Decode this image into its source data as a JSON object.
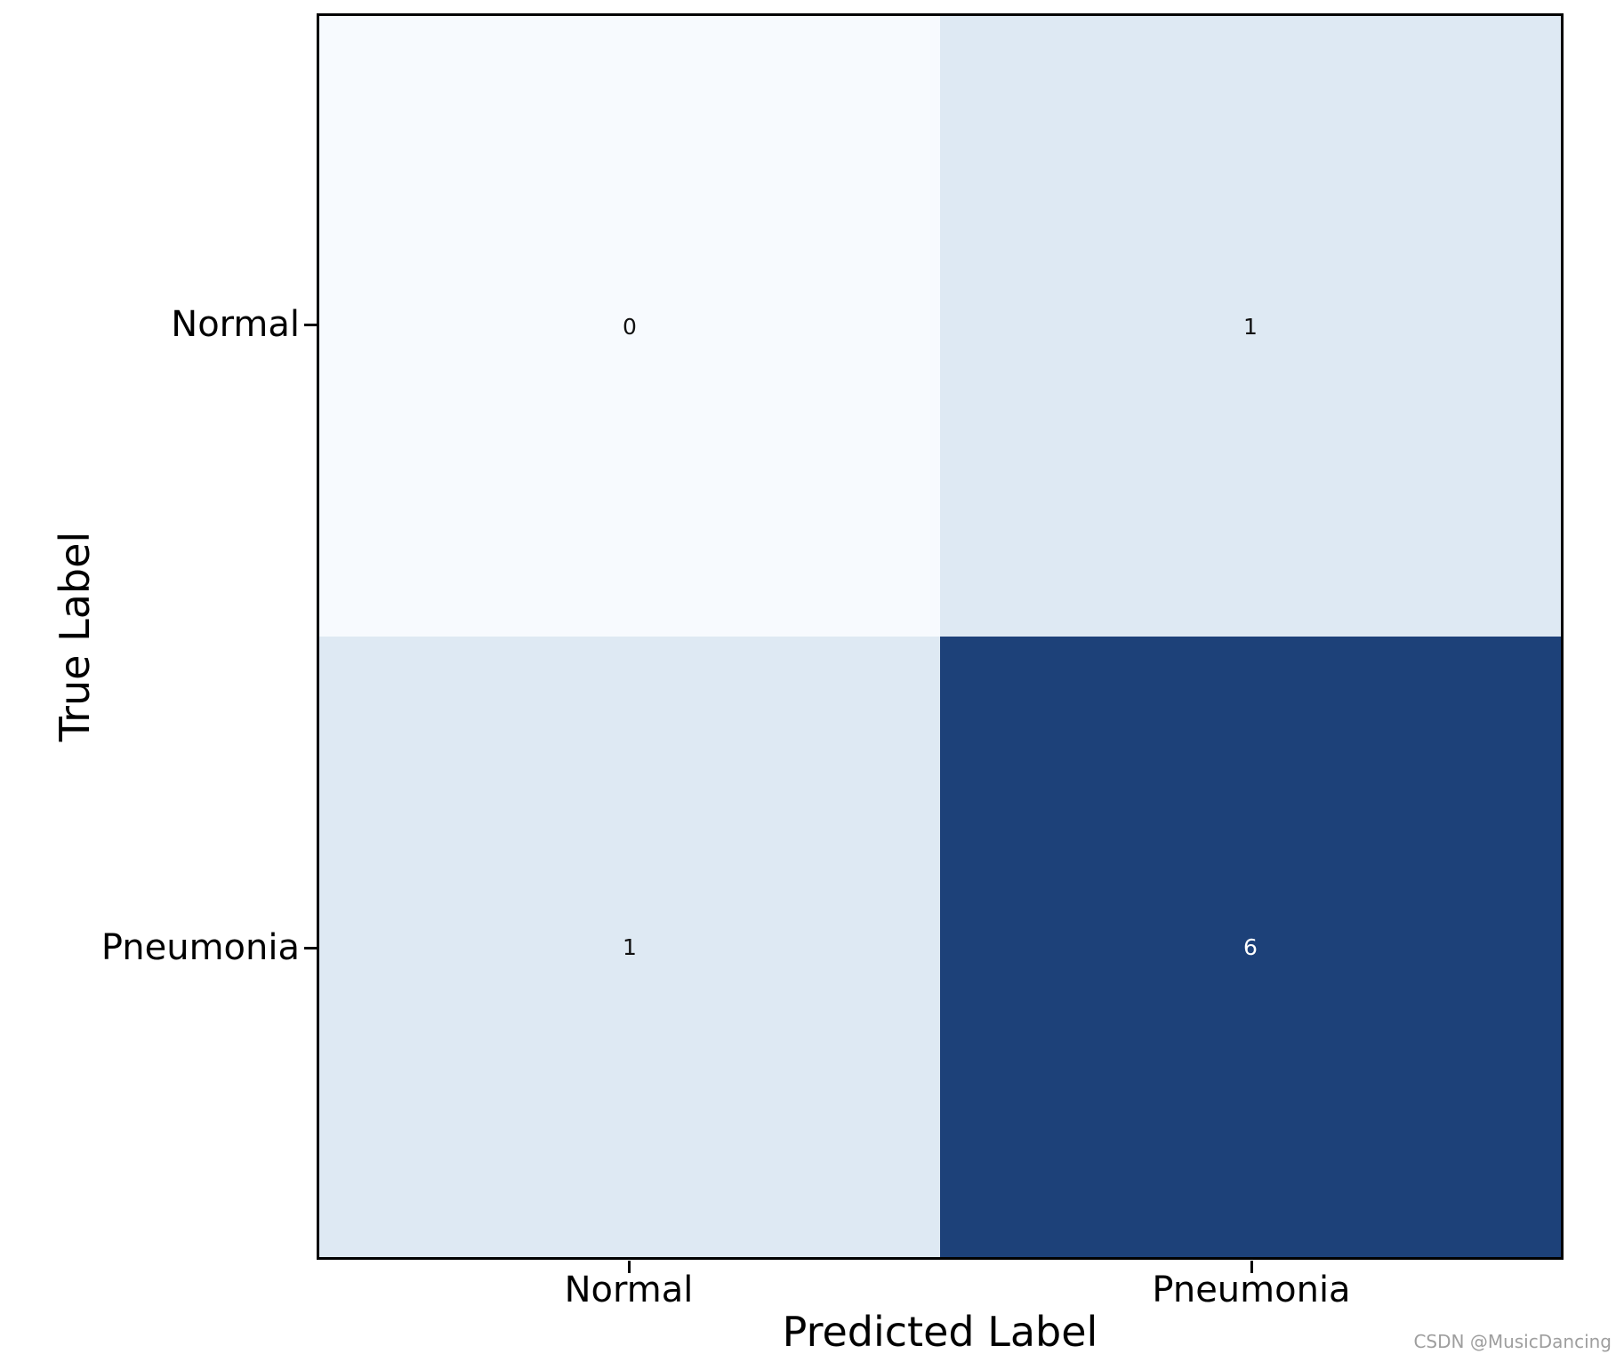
{
  "chart_data": {
    "type": "heatmap",
    "title": "",
    "xlabel": "Predicted Label",
    "ylabel": "True Label",
    "categories_x": [
      "Normal",
      "Pneumonia"
    ],
    "categories_y": [
      "Normal",
      "Pneumonia"
    ],
    "matrix": [
      [
        0,
        1
      ],
      [
        1,
        6
      ]
    ],
    "vmin": 0,
    "vmax": 6,
    "colormap": "Blues",
    "legend": "none",
    "grid": false,
    "cells": [
      {
        "row": "Normal",
        "col": "Normal",
        "value": "0",
        "color": "#f7fafe",
        "text_color": "#111111"
      },
      {
        "row": "Normal",
        "col": "Pneumonia",
        "value": "1",
        "color": "#dee9f3",
        "text_color": "#111111"
      },
      {
        "row": "Pneumonia",
        "col": "Normal",
        "value": "1",
        "color": "#dee9f3",
        "text_color": "#111111"
      },
      {
        "row": "Pneumonia",
        "col": "Pneumonia",
        "value": "6",
        "color": "#1d4179",
        "text_color": "#ffffff"
      }
    ]
  },
  "axes": {
    "x_title": "Predicted Label",
    "y_title": "True Label",
    "x_tick_1": "Normal",
    "x_tick_2": "Pneumonia",
    "y_tick_1": "Normal",
    "y_tick_2": "Pneumonia"
  },
  "watermark": {
    "text": "CSDN @MusicDancing",
    "color": "#9e9e9e"
  },
  "colors": {
    "border": "#000000",
    "background": "#ffffff",
    "cell_min": "#f7fafe",
    "cell_low": "#dee9f3",
    "cell_max": "#1d4179"
  }
}
